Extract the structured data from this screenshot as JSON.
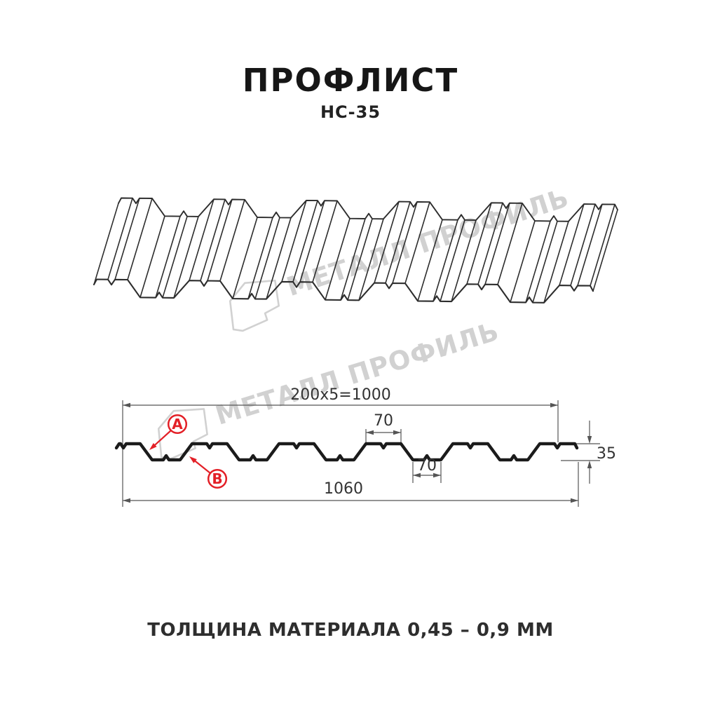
{
  "header": {
    "title": "ПРОФЛИСТ",
    "subtitle": "НС-35"
  },
  "watermark": {
    "brand": "МЕТАЛЛ ПРОФИЛЬ"
  },
  "drawing": {
    "dim_top": "200x5=1000",
    "dim_crest": "70",
    "dim_valley": "70",
    "dim_height": "35",
    "dim_total": "1060",
    "label_a": "A",
    "label_b": "B"
  },
  "footer": {
    "thickness": "ТОЛЩИНА МАТЕРИАЛА 0,45 – 0,9 ММ"
  },
  "colors": {
    "line_dark": "#1b1b1b",
    "line_3d": "#2d2d2d",
    "dim_line": "#555555",
    "red_accent": "#e32027",
    "watermark_gray": "#c9c9c9"
  }
}
